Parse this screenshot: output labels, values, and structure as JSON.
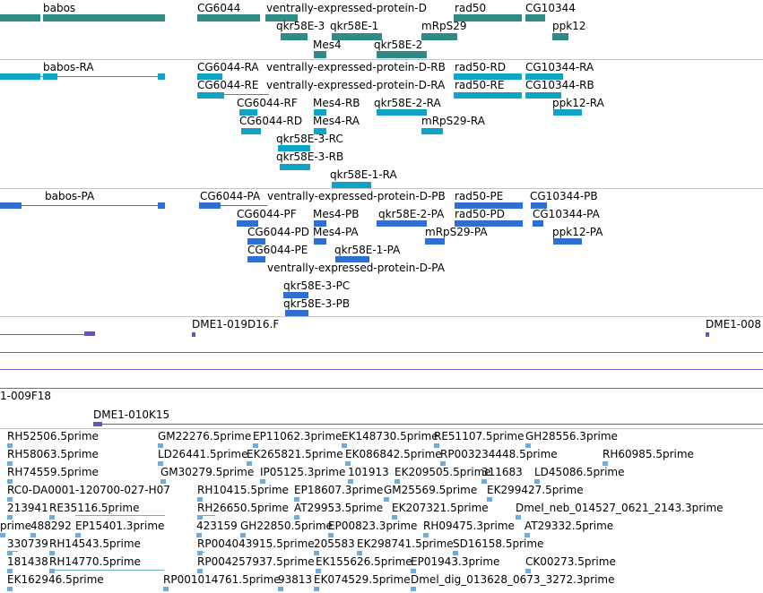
{
  "colors": {
    "gene": "#2e8b86",
    "transcript": "#10a3c7",
    "protein": "#2f6fd2",
    "clone": "#6b52b8",
    "est": "#6aaee0",
    "separator": "#c4c4c4"
  },
  "genes": [
    "babos",
    "CG6044",
    "ventrally-expressed-protein-D",
    "rad50",
    "CG10344",
    "qkr58E-3",
    "qkr58E-1",
    "mRpS29",
    "ppk12",
    "Mes4",
    "qkr58E-2"
  ],
  "transcripts": [
    "babos-RA",
    "CG6044-RA",
    "ventrally-expressed-protein-D-RB",
    "rad50-RD",
    "CG10344-RA",
    "CG6044-RE",
    "ventrally-expressed-protein-D-RA",
    "rad50-RE",
    "CG10344-RB",
    "CG6044-RF",
    "Mes4-RB",
    "qkr58E-2-RA",
    "ppk12-RA",
    "CG6044-RD",
    "Mes4-RA",
    "mRpS29-RA",
    "qkr58E-3-RC",
    "qkr58E-3-RB",
    "qkr58E-1-RA"
  ],
  "proteins": [
    "babos-PA",
    "CG6044-PA",
    "ventrally-expressed-protein-D-PB",
    "rad50-PE",
    "CG10344-PB",
    "CG6044-PF",
    "Mes4-PB",
    "qkr58E-2-PA",
    "rad50-PD",
    "CG10344-PA",
    "CG6044-PD",
    "Mes4-PA",
    "mRpS29-PA",
    "ppk12-PA",
    "CG6044-PE",
    "qkr58E-1-PA",
    "ventrally-expressed-protein-D-PA",
    "qkr58E-3-PC",
    "qkr58E-3-PB"
  ],
  "clones": [
    "DME1-019D16.F",
    "DME1-008",
    "1-009F18",
    "DME1-010K15"
  ],
  "ests": [
    "RH52506.5prime",
    "GM22276.5prime",
    "EP11062.3prime",
    "EK148730.5prime",
    "RE51107.5prime",
    "GH28556.3prime",
    "RH58063.5prime",
    "LD26441.5prime",
    "EK265821.5prime",
    "EK086842.5prime",
    "RP003234448.5prime",
    "RH60985.5prime",
    "RH74559.5prime",
    "GM30279.5prime",
    "IP05125.3prime",
    "101913",
    "EK209505.5prime",
    "311683",
    "LD45086.5prime",
    "RC0-DA0001-120700-027-H07",
    "RH10415.5prime",
    "EP18607.3prime",
    "GM25569.5prime",
    "EK299427.5prime",
    "213941",
    "RE35116.5prime",
    "RH26650.5prime",
    "AT29953.5prime",
    "EK207321.5prime",
    "Dmel_neb_014527_0621_2143.3prime",
    "prime",
    "488292",
    "EP15401.3prime",
    "423159",
    "GH22850.5prime",
    "EP00823.3prime",
    "RH09475.3prime",
    "AT29332.5prime",
    "330739",
    "RH14543.5prime",
    "RP004043915.5prime",
    "205583",
    "EK298741.5prime",
    "SD16158.5prime",
    "181438",
    "RH14770.5prime",
    "RP004257937.5prime",
    "EK155626.5prime",
    "EP01943.3prime",
    "CK00273.5prime",
    "EK162946.5prime",
    "RP001014761.5prime",
    "93813",
    "EK074529.5prime",
    "Dmel_dig_013628_0673_3272.3prime"
  ]
}
